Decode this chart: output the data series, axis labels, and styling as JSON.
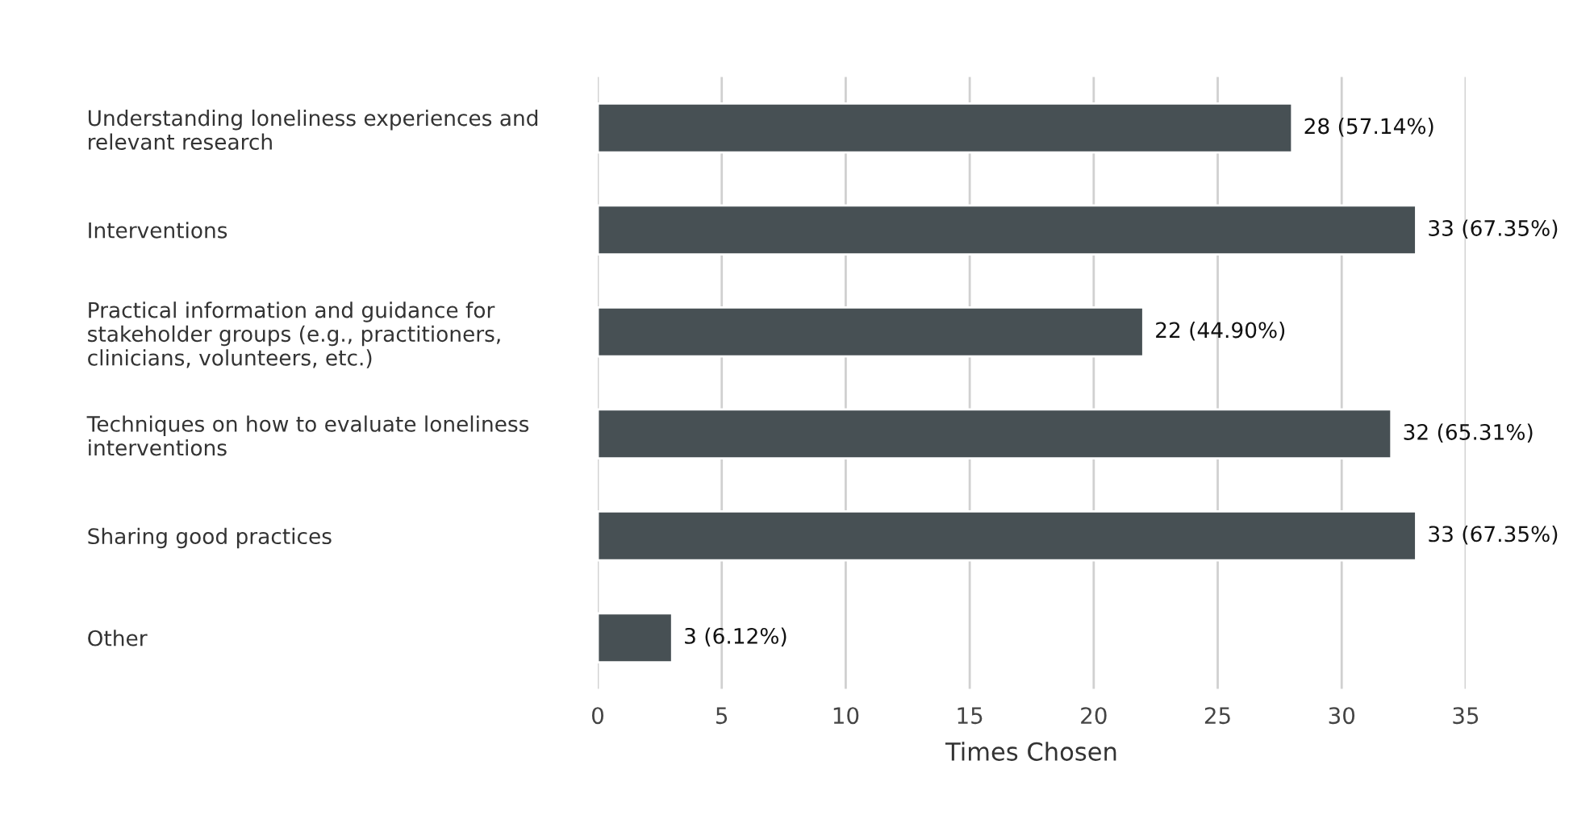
{
  "chart_data": {
    "type": "bar",
    "orientation": "horizontal",
    "xlabel": "Times Chosen",
    "categories": [
      "Understanding loneliness experiences and\nrelevant research",
      "Interventions",
      "Practical information and guidance for\nstakeholder groups (e.g., practitioners,\nclinicians, volunteers, etc.)",
      "Techniques on how to evaluate loneliness\ninterventions",
      "Sharing good practices",
      "Other"
    ],
    "values": [
      28,
      33,
      22,
      32,
      33,
      3
    ],
    "value_labels": [
      "28 (57.14%)",
      "33 (67.35%)",
      "22 (44.90%)",
      "32 (65.31%)",
      "33 (67.35%)",
      "3 (6.12%)"
    ],
    "color": "#475054",
    "xlim": [
      0,
      35
    ],
    "xticks": [
      0,
      5,
      10,
      15,
      20,
      25,
      30,
      35
    ],
    "grid": "x"
  }
}
